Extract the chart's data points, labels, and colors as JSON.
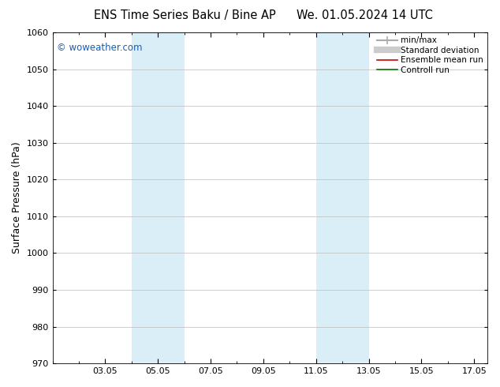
{
  "title_left": "ENS Time Series Baku / Bine AP",
  "title_right": "We. 01.05.2024 14 UTC",
  "ylabel": "Surface Pressure (hPa)",
  "ylim": [
    970,
    1060
  ],
  "yticks": [
    970,
    980,
    990,
    1000,
    1010,
    1020,
    1030,
    1040,
    1050,
    1060
  ],
  "xlim": [
    1.0,
    17.5
  ],
  "xtick_labels": [
    "03.05",
    "05.05",
    "07.05",
    "09.05",
    "11.05",
    "13.05",
    "15.05",
    "17.05"
  ],
  "xtick_positions": [
    3,
    5,
    7,
    9,
    11,
    13,
    15,
    17
  ],
  "shaded_regions": [
    {
      "start": 4.0,
      "end": 6.0,
      "color": "#daeef8"
    },
    {
      "start": 11.0,
      "end": 13.0,
      "color": "#daeef8"
    }
  ],
  "watermark": "© woweather.com",
  "watermark_color": "#1a5fb4",
  "legend_items": [
    {
      "label": "min/max",
      "color": "#aaaaaa",
      "lw": 1.5
    },
    {
      "label": "Standard deviation",
      "color": "#cccccc",
      "lw": 6
    },
    {
      "label": "Ensemble mean run",
      "color": "#cc0000",
      "lw": 1.2
    },
    {
      "label": "Controll run",
      "color": "#007700",
      "lw": 1.2
    }
  ],
  "bg_color": "#ffffff",
  "plot_bg_color": "#ffffff",
  "grid_color": "#bbbbbb",
  "title_fontsize": 10.5,
  "tick_fontsize": 8,
  "ylabel_fontsize": 9,
  "legend_fontsize": 7.5
}
